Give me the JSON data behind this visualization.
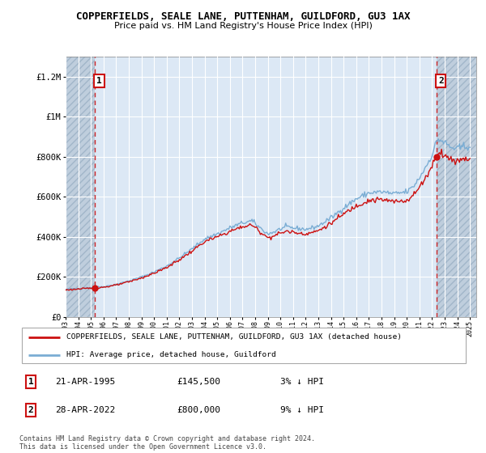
{
  "title": "COPPERFIELDS, SEALE LANE, PUTTENHAM, GUILDFORD, GU3 1AX",
  "subtitle": "Price paid vs. HM Land Registry's House Price Index (HPI)",
  "ylabel_ticks": [
    "£0",
    "£200K",
    "£400K",
    "£600K",
    "£800K",
    "£1M",
    "£1.2M"
  ],
  "ytick_values": [
    0,
    200000,
    400000,
    600000,
    800000,
    1000000,
    1200000
  ],
  "ylim": [
    0,
    1300000
  ],
  "xlim_start": 1993.0,
  "xlim_end": 2025.5,
  "sale1_x": 1995.3,
  "sale1_y": 145500,
  "sale1_label": "1",
  "sale2_x": 2022.33,
  "sale2_y": 800000,
  "sale2_label": "2",
  "hpi_color": "#7aadd4",
  "price_color": "#cc1111",
  "annotation_box_color": "#cc1111",
  "chart_bg_color": "#dce8f5",
  "hatch_color": "#b8c8d8",
  "grid_color": "#ffffff",
  "legend_line1": "COPPERFIELDS, SEALE LANE, PUTTENHAM, GUILDFORD, GU3 1AX (detached house)",
  "legend_line2": "HPI: Average price, detached house, Guildford",
  "table_row1": [
    "1",
    "21-APR-1995",
    "£145,500",
    "3% ↓ HPI"
  ],
  "table_row2": [
    "2",
    "28-APR-2022",
    "£800,000",
    "9% ↓ HPI"
  ],
  "footer": "Contains HM Land Registry data © Crown copyright and database right 2024.\nThis data is licensed under the Open Government Licence v3.0."
}
